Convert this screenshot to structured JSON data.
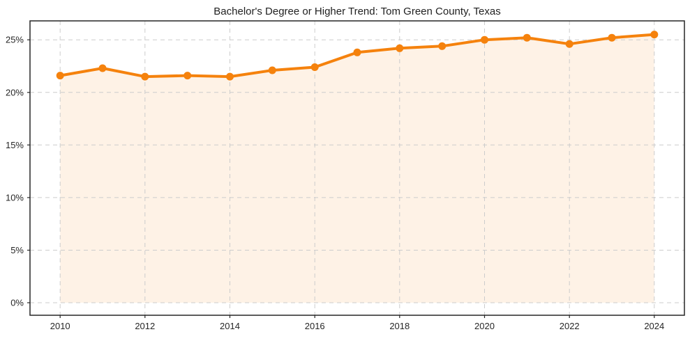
{
  "chart_data": {
    "type": "line",
    "title": "Bachelor's Degree or Higher Trend: Tom Green County, Texas",
    "xlabel": "",
    "ylabel": "",
    "x": [
      2010,
      2011,
      2012,
      2013,
      2014,
      2015,
      2016,
      2017,
      2018,
      2019,
      2020,
      2021,
      2022,
      2023,
      2024
    ],
    "values": [
      21.6,
      22.3,
      21.5,
      21.6,
      21.5,
      22.1,
      22.4,
      23.8,
      24.2,
      24.4,
      25.0,
      25.2,
      24.6,
      25.2,
      25.5
    ],
    "unit": "%",
    "xticks": [
      2010,
      2012,
      2014,
      2016,
      2018,
      2020,
      2022,
      2024
    ],
    "xtick_labels": [
      "2010",
      "2012",
      "2014",
      "2016",
      "2018",
      "2020",
      "2022",
      "2024"
    ],
    "yticks": [
      0,
      5,
      10,
      15,
      20,
      25
    ],
    "ytick_labels": [
      "0%",
      "5%",
      "10%",
      "15%",
      "20%",
      "25%"
    ],
    "xlim": [
      2009.29,
      2024.71
    ],
    "ylim": [
      -1.19,
      26.8
    ],
    "grid": true,
    "grid_style": "dashed",
    "legend": "none",
    "marker": "circle",
    "area_fill_to_zero": true,
    "colors": {
      "line": "#f5820d",
      "marker": "#f5820d",
      "fill": "#f5820d",
      "grid": "#cccccc",
      "spine": "#262626",
      "text": "#262626"
    },
    "fill_opacity": 0.1
  }
}
